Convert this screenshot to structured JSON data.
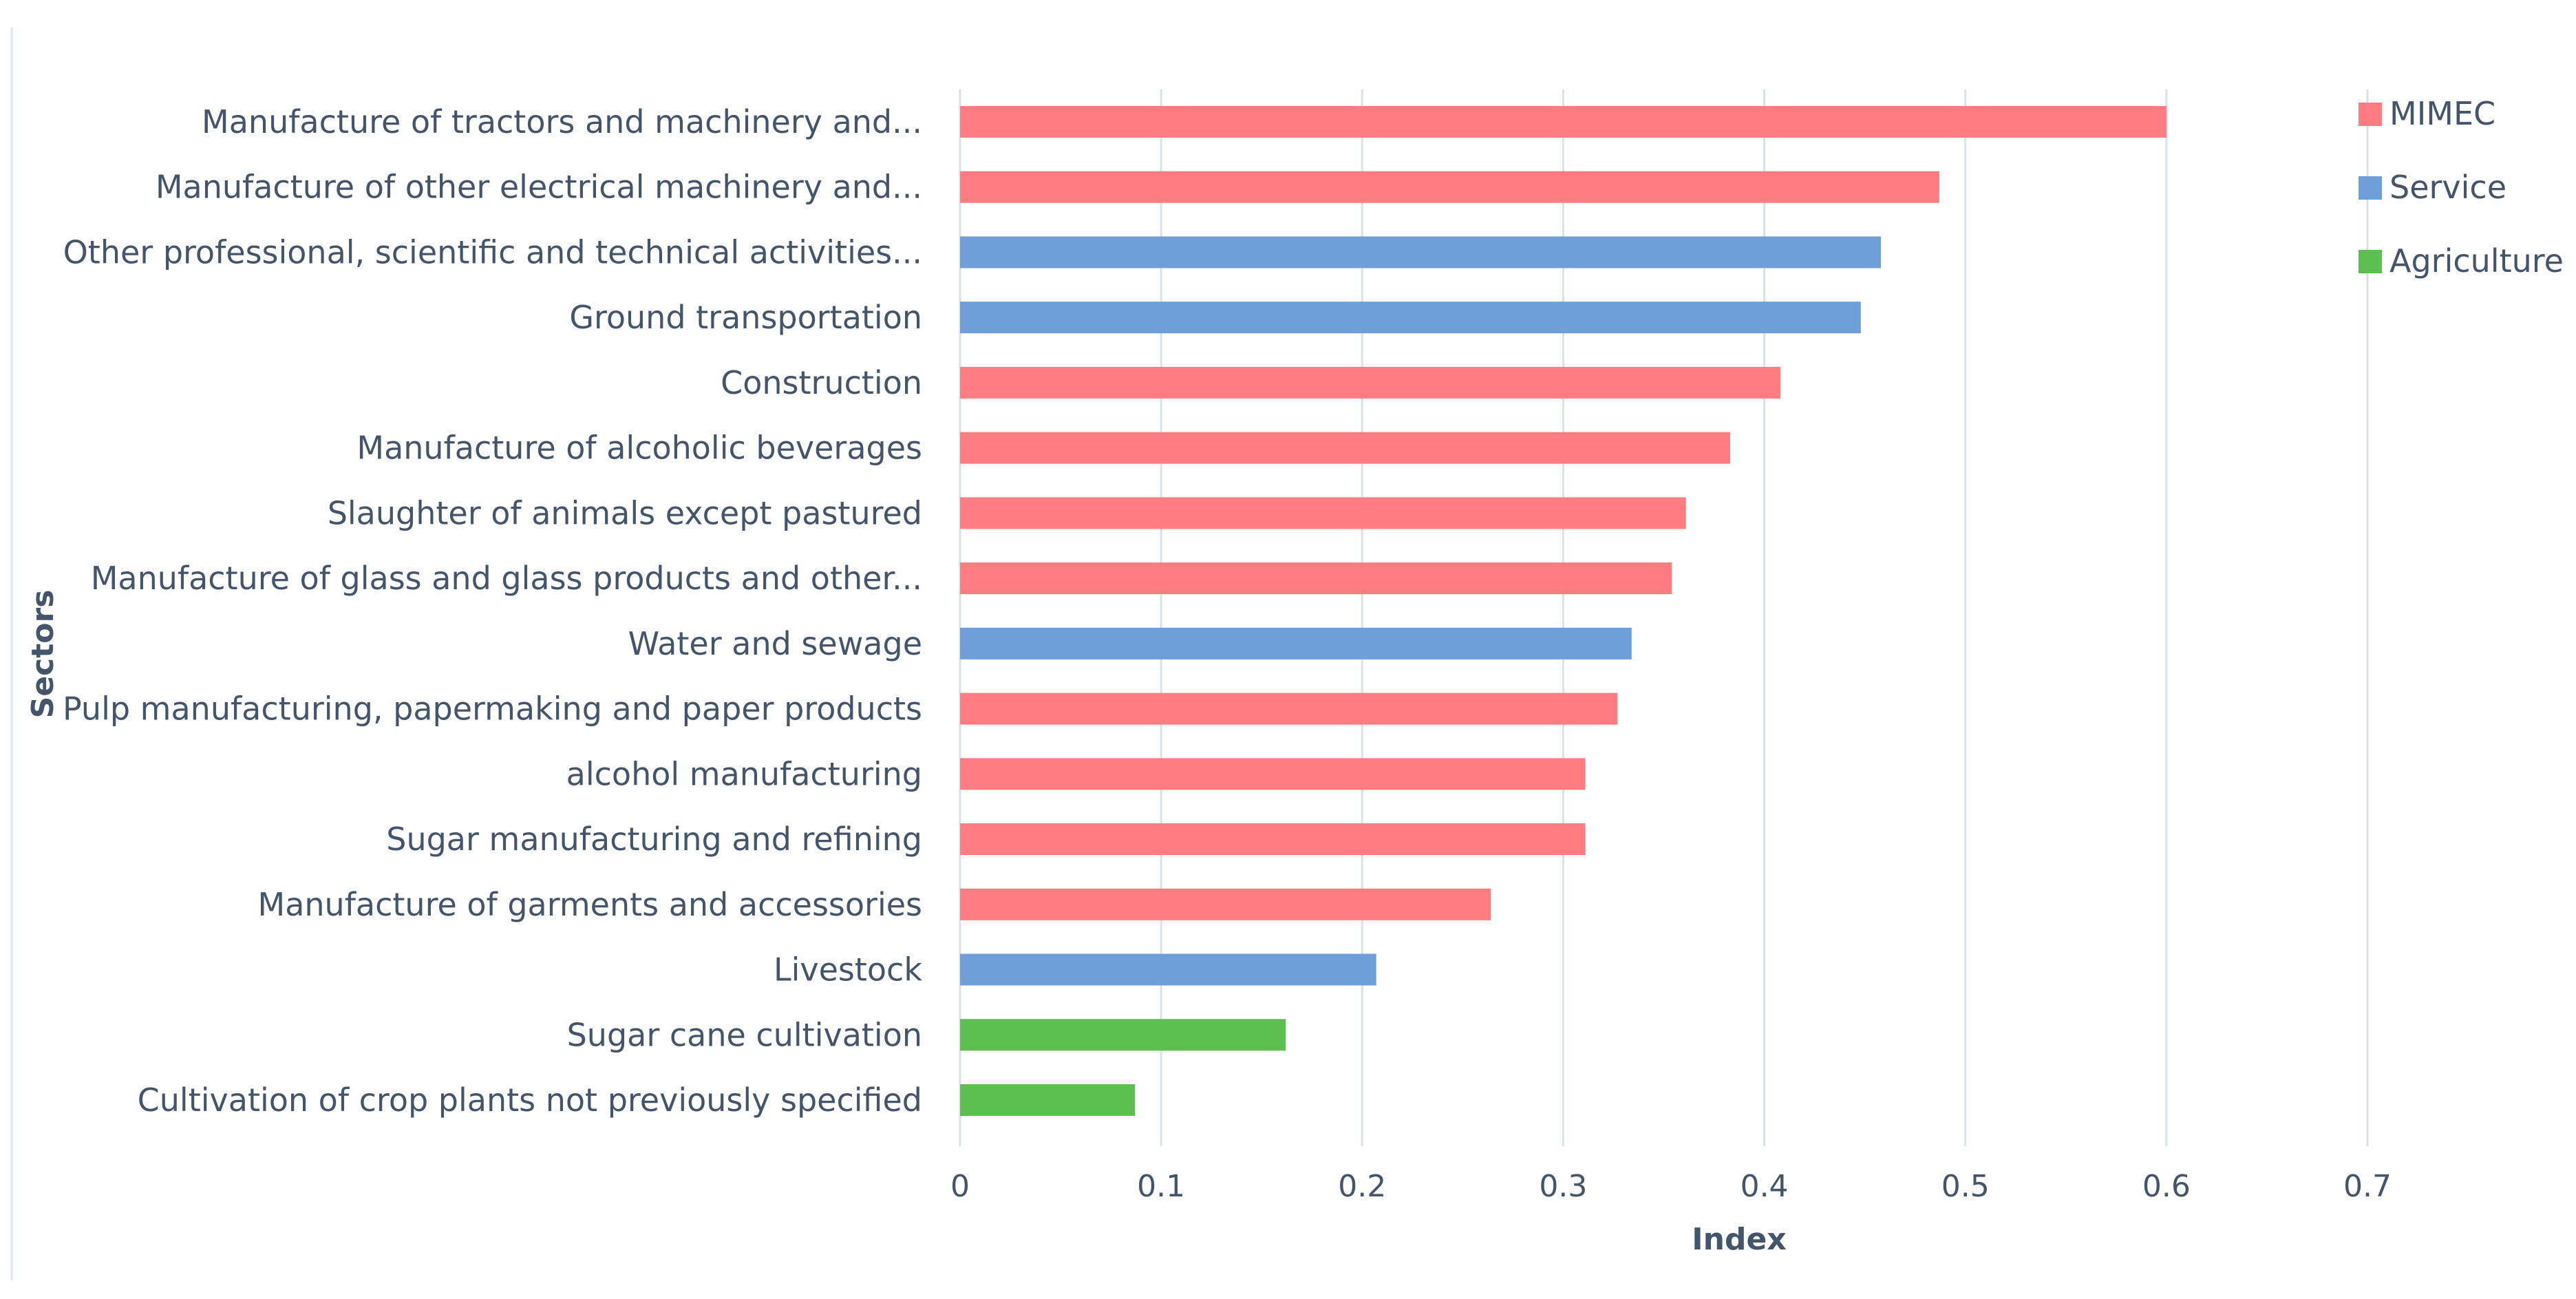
{
  "chart_data": {
    "type": "bar",
    "orientation": "horizontal",
    "title": "",
    "xlabel": "Index",
    "ylabel": "Sectors",
    "xlim": [
      0,
      0.7
    ],
    "xticks": [
      0,
      0.1,
      0.2,
      0.3,
      0.4,
      0.5,
      0.6,
      0.7
    ],
    "xtick_labels": [
      "0",
      "0.1",
      "0.2",
      "0.3",
      "0.4",
      "0.5",
      "0.6",
      "0.7"
    ],
    "grid": true,
    "legend_position": "top-right",
    "legend": [
      {
        "name": "MIMEC",
        "color": "#ff7c80"
      },
      {
        "name": "Service",
        "color": "#6f9fd8"
      },
      {
        "name": "Agriculture",
        "color": "#5cbf4f"
      }
    ],
    "categories": [
      "Manufacture of tractors and machinery and...",
      "Manufacture of other electrical machinery and...",
      "Other professional, scientific and technical activities...",
      "Ground transportation",
      "Construction",
      "Manufacture of alcoholic beverages",
      "Slaughter of animals except pastured",
      "Manufacture of glass and glass products and other...",
      "Water and sewage",
      "Pulp manufacturing, papermaking and paper products",
      "alcohol manufacturing",
      "Sugar manufacturing and refining",
      "Manufacture of garments and accessories",
      "Livestock",
      "Sugar cane cultivation",
      "Cultivation of crop plants not previously specified"
    ],
    "values": [
      0.6,
      0.487,
      0.458,
      0.448,
      0.408,
      0.383,
      0.361,
      0.354,
      0.334,
      0.327,
      0.311,
      0.311,
      0.264,
      0.207,
      0.162,
      0.087
    ],
    "groups": [
      "MIMEC",
      "MIMEC",
      "Service",
      "Service",
      "MIMEC",
      "MIMEC",
      "MIMEC",
      "MIMEC",
      "Service",
      "MIMEC",
      "MIMEC",
      "MIMEC",
      "MIMEC",
      "Service",
      "Agriculture",
      "Agriculture"
    ]
  }
}
